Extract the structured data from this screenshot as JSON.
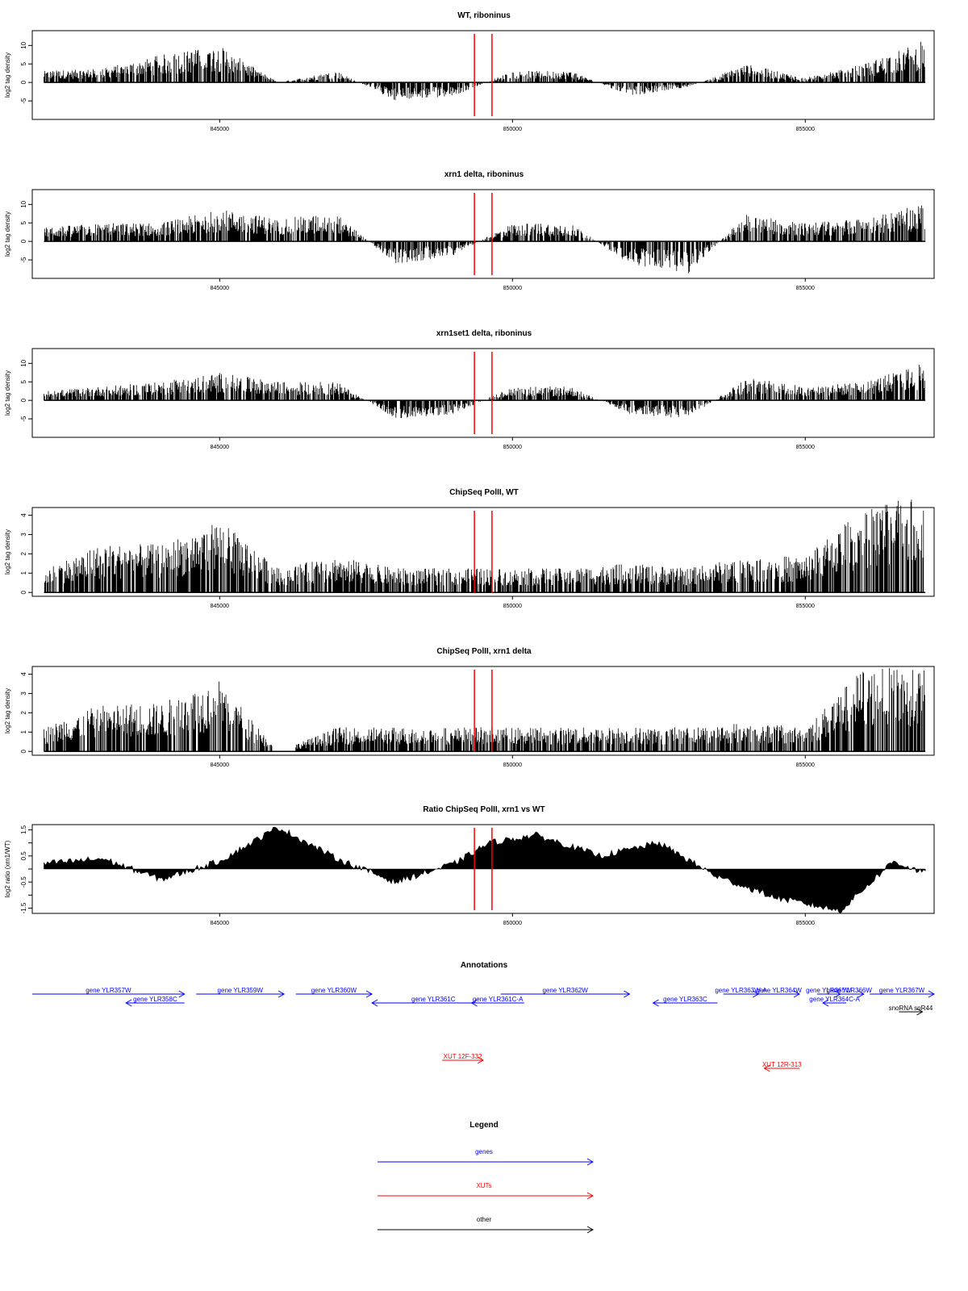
{
  "chart_data": [
    {
      "type": "bar",
      "title": "WT, riboninus",
      "xlabel": "",
      "ylabel": "log2 tag density",
      "xlim": [
        841800,
        857200
      ],
      "ylim": [
        -10,
        14
      ],
      "yticks": [
        -5,
        0,
        5,
        10
      ],
      "xticks": [
        845000,
        850000,
        855000
      ],
      "xtick_labels": [
        "845000",
        "850000",
        "855000"
      ],
      "grid": false,
      "x": [
        842000,
        843000,
        844000,
        845000,
        846000,
        847000,
        848000,
        849000,
        850000,
        851000,
        852000,
        853000,
        854000,
        855000,
        856000,
        857000
      ],
      "values": [
        2.5,
        3,
        6,
        8,
        0,
        2.5,
        -4,
        -3,
        2.5,
        2.5,
        -3,
        -1,
        4,
        1,
        4,
        9
      ],
      "markers": [
        849350,
        849650
      ]
    },
    {
      "type": "bar",
      "title": "xrn1 delta, riboninus",
      "xlabel": "",
      "ylabel": "log2 tag density",
      "xlim": [
        841800,
        857200
      ],
      "ylim": [
        -10,
        14
      ],
      "yticks": [
        -5,
        0,
        5,
        10
      ],
      "xticks": [
        845000,
        850000,
        855000
      ],
      "xtick_labels": [
        "845000",
        "850000",
        "855000"
      ],
      "grid": false,
      "x": [
        842000,
        843000,
        844000,
        845000,
        846000,
        847000,
        848000,
        849000,
        850000,
        851000,
        852000,
        853000,
        854000,
        855000,
        856000,
        857000
      ],
      "values": [
        3,
        4,
        4,
        7,
        5,
        6,
        -5,
        -3,
        4,
        4,
        -5,
        -7,
        6,
        4,
        5,
        8
      ],
      "markers": [
        849350,
        849650
      ]
    },
    {
      "type": "bar",
      "title": "xrn1set1 delta, riboninus",
      "xlabel": "",
      "ylabel": "log2 tag density",
      "xlim": [
        841800,
        857200
      ],
      "ylim": [
        -10,
        14
      ],
      "yticks": [
        -5,
        0,
        5,
        10
      ],
      "xticks": [
        845000,
        850000,
        855000
      ],
      "xtick_labels": [
        "845000",
        "850000",
        "855000"
      ],
      "grid": false,
      "x": [
        842000,
        843000,
        844000,
        845000,
        846000,
        847000,
        848000,
        849000,
        850000,
        851000,
        852000,
        853000,
        854000,
        855000,
        856000,
        857000
      ],
      "values": [
        2,
        3,
        4,
        6,
        4,
        4,
        -4,
        -3,
        3,
        3,
        -3,
        -4,
        5,
        3,
        4,
        8
      ],
      "markers": [
        849350,
        849650
      ]
    },
    {
      "type": "bar",
      "title": "ChipSeq PolII, WT",
      "xlabel": "",
      "ylabel": "log2 tag density",
      "xlim": [
        841800,
        857200
      ],
      "ylim": [
        -0.2,
        4.4
      ],
      "yticks": [
        0,
        1,
        2,
        3,
        4
      ],
      "xticks": [
        845000,
        850000,
        855000
      ],
      "xtick_labels": [
        "845000",
        "850000",
        "855000"
      ],
      "grid": false,
      "x": [
        842000,
        843000,
        844000,
        845000,
        846000,
        847000,
        848000,
        849000,
        850000,
        851000,
        852000,
        853000,
        854000,
        855000,
        856000,
        857000
      ],
      "values": [
        1,
        2,
        2,
        3,
        1,
        1.5,
        1,
        1,
        1,
        1,
        1.2,
        1,
        1.5,
        1.5,
        3.5,
        4
      ],
      "markers": [
        849350,
        849650
      ]
    },
    {
      "type": "bar",
      "title": "ChipSeq PolII, xrn1 delta",
      "xlabel": "",
      "ylabel": "log2 tag density",
      "xlim": [
        841800,
        857200
      ],
      "ylim": [
        -0.2,
        4.4
      ],
      "yticks": [
        0,
        1,
        2,
        3,
        4
      ],
      "xticks": [
        845000,
        850000,
        855000
      ],
      "xtick_labels": [
        "845000",
        "850000",
        "855000"
      ],
      "grid": false,
      "x": [
        842000,
        843000,
        844000,
        845000,
        846000,
        847000,
        848000,
        849000,
        850000,
        851000,
        852000,
        853000,
        854000,
        855000,
        856000,
        857000
      ],
      "values": [
        1,
        2,
        2,
        3,
        0,
        1,
        1,
        1,
        1,
        1,
        1,
        1,
        1.2,
        1,
        3.5,
        3.5
      ],
      "markers": [
        849350,
        849650
      ]
    },
    {
      "type": "area",
      "title": "Ratio ChipSeq PolII, xrn1 vs WT",
      "xlabel": "",
      "ylabel": "log2 ratio (xrn1/WT)",
      "xlim": [
        841800,
        857200
      ],
      "ylim": [
        -1.7,
        1.7
      ],
      "yticks": [
        -1.5,
        -1,
        -0.5,
        0,
        0.5,
        1,
        1.5
      ],
      "ytick_labels": [
        "-1.5",
        "",
        "-0.5",
        "",
        "0.5",
        "",
        "1.5"
      ],
      "xticks": [
        845000,
        850000,
        855000
      ],
      "xtick_labels": [
        "845000",
        "850000",
        "855000"
      ],
      "grid": false,
      "x": [
        842000,
        843000,
        844000,
        845000,
        846000,
        847000,
        848000,
        849000,
        849600,
        850400,
        851500,
        852500,
        853500,
        854500,
        855600,
        856500,
        857200
      ],
      "values": [
        0.2,
        0.4,
        -0.4,
        0.3,
        1.6,
        0.4,
        -0.5,
        0.2,
        1,
        1.3,
        0.5,
        1,
        -0.3,
        -1.1,
        -1.6,
        0.3,
        -0.3
      ],
      "markers": [
        849350,
        849650
      ]
    },
    {
      "type": "other",
      "title": "Annotations",
      "xlim": [
        841800,
        857200
      ],
      "genes": [
        {
          "label": "gene YLR357W",
          "start": 841800,
          "end": 844400,
          "dir": "+",
          "row": 0
        },
        {
          "label": "gene YLR358C",
          "start": 843400,
          "end": 844400,
          "dir": "-",
          "row": 1
        },
        {
          "label": "gene YLR359W",
          "start": 844600,
          "end": 846100,
          "dir": "+",
          "row": 0
        },
        {
          "label": "gene YLR360W",
          "start": 846300,
          "end": 847600,
          "dir": "+",
          "row": 0
        },
        {
          "label": "gene YLR361C",
          "start": 847600,
          "end": 849700,
          "dir": "-",
          "row": 1
        },
        {
          "label": "gene YLR361C-A",
          "start": 849300,
          "end": 850200,
          "dir": "-",
          "row": 1
        },
        {
          "label": "gene YLR362W",
          "start": 849800,
          "end": 852000,
          "dir": "+",
          "row": 0
        },
        {
          "label": "gene YLR363C",
          "start": 852400,
          "end": 853500,
          "dir": "-",
          "row": 1
        },
        {
          "label": "gene YLR363W-A",
          "start": 853600,
          "end": 854200,
          "dir": "+",
          "row": 0
        },
        {
          "label": "gene YLR364W",
          "start": 854200,
          "end": 854900,
          "dir": "+",
          "row": 0
        },
        {
          "label": "gene YLR365W",
          "start": 855200,
          "end": 855600,
          "dir": "+",
          "row": 0
        },
        {
          "label": "gene YLR364C-A",
          "start": 855300,
          "end": 855700,
          "dir": "-",
          "row": 1
        },
        {
          "label": "gene YLR366W",
          "start": 855500,
          "end": 856000,
          "dir": "+",
          "row": 0
        },
        {
          "label": "gene YLR367W",
          "start": 856100,
          "end": 857200,
          "dir": "+",
          "row": 0
        }
      ],
      "other": [
        {
          "label": "snoRNA snR44",
          "start": 856600,
          "end": 857000,
          "dir": "+",
          "row": 2
        }
      ],
      "xuts": [
        {
          "label": "XUT 12F-332",
          "start": 848800,
          "end": 849500,
          "dir": "+",
          "row": 0
        },
        {
          "label": "XUT 12R-313",
          "start": 854300,
          "end": 854900,
          "dir": "-",
          "row": 1
        }
      ]
    },
    {
      "type": "other",
      "title": "Legend",
      "items": [
        {
          "label": "genes",
          "color": "#0000ff"
        },
        {
          "label": "XUTs",
          "color": "#ff0000"
        },
        {
          "label": "other",
          "color": "#000000"
        }
      ]
    }
  ]
}
